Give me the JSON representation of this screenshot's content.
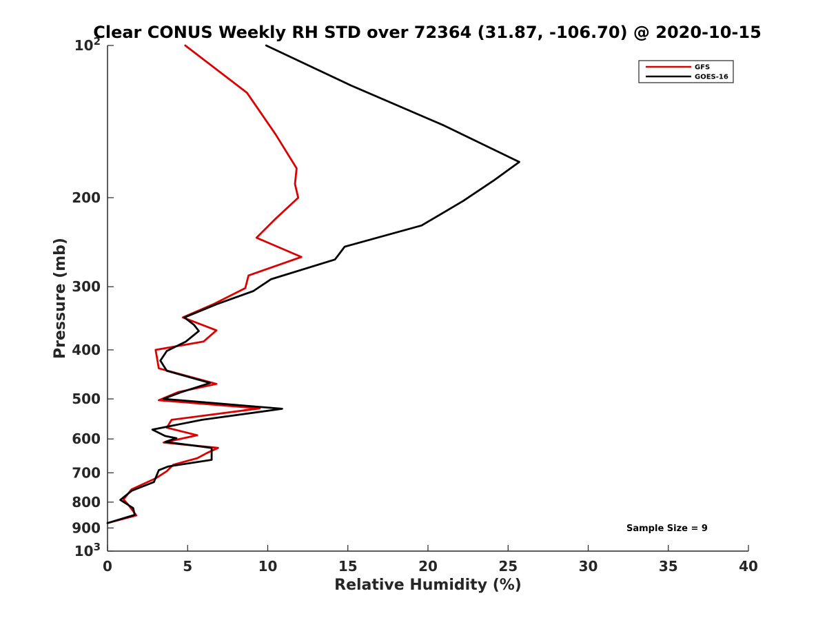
{
  "chart_data": {
    "type": "line",
    "title": "Clear CONUS Weekly RH STD over 72364 (31.87, -106.70) @ 2020-10-15",
    "xlabel": "Relative Humidity (%)",
    "ylabel": "Pressure (mb)",
    "xlim": [
      0,
      40
    ],
    "ylim": [
      100,
      1000
    ],
    "y_scale": "log",
    "y_reversed": true,
    "x_ticks": [
      "0",
      "5",
      "10",
      "15",
      "20",
      "25",
      "30",
      "35",
      "40"
    ],
    "y_ticks": [
      {
        "value": 100,
        "label": "10",
        "sup": "2"
      },
      {
        "value": 200,
        "label": "200",
        "sup": ""
      },
      {
        "value": 300,
        "label": "300",
        "sup": ""
      },
      {
        "value": 400,
        "label": "400",
        "sup": ""
      },
      {
        "value": 500,
        "label": "500",
        "sup": ""
      },
      {
        "value": 600,
        "label": "600",
        "sup": ""
      },
      {
        "value": 700,
        "label": "700",
        "sup": ""
      },
      {
        "value": 800,
        "label": "800",
        "sup": ""
      },
      {
        "value": 900,
        "label": "900",
        "sup": ""
      },
      {
        "value": 1000,
        "label": "10",
        "sup": "3"
      }
    ],
    "grid": false,
    "legend_position": "top-right",
    "annotation": "Sample Size = 9",
    "series": [
      {
        "name": "GFS",
        "color": "#dd0000",
        "points": [
          [
            4.85,
            100
          ],
          [
            8.7,
            124
          ],
          [
            10.5,
            150
          ],
          [
            11.8,
            175
          ],
          [
            11.7,
            188
          ],
          [
            11.9,
            200
          ],
          [
            10.5,
            220
          ],
          [
            9.3,
            240
          ],
          [
            12.1,
            262
          ],
          [
            8.8,
            285
          ],
          [
            8.6,
            302
          ],
          [
            6.6,
            325
          ],
          [
            4.7,
            345
          ],
          [
            6.8,
            366
          ],
          [
            6.0,
            385
          ],
          [
            3.0,
            400
          ],
          [
            3.2,
            435
          ],
          [
            6.8,
            467
          ],
          [
            4.4,
            485
          ],
          [
            3.2,
            503
          ],
          [
            9.5,
            522
          ],
          [
            4.0,
            550
          ],
          [
            3.7,
            570
          ],
          [
            5.6,
            590
          ],
          [
            3.5,
            610
          ],
          [
            6.9,
            625
          ],
          [
            6.2,
            640
          ],
          [
            5.6,
            655
          ],
          [
            4.1,
            675
          ],
          [
            3.7,
            695
          ],
          [
            3.0,
            718
          ],
          [
            1.5,
            755
          ],
          [
            1.0,
            790
          ],
          [
            1.3,
            810
          ],
          [
            1.8,
            850
          ],
          [
            0.0,
            880
          ]
        ]
      },
      {
        "name": "GOES-16",
        "color": "#000000",
        "points": [
          [
            9.9,
            100
          ],
          [
            15.2,
            120
          ],
          [
            21.0,
            144
          ],
          [
            25.7,
            170
          ],
          [
            24.1,
            185
          ],
          [
            22.2,
            203
          ],
          [
            19.6,
            227
          ],
          [
            14.8,
            250
          ],
          [
            14.2,
            265
          ],
          [
            10.2,
            290
          ],
          [
            9.1,
            306
          ],
          [
            6.8,
            325
          ],
          [
            4.8,
            345
          ],
          [
            5.4,
            357
          ],
          [
            5.7,
            367
          ],
          [
            4.9,
            385
          ],
          [
            3.7,
            402
          ],
          [
            3.3,
            420
          ],
          [
            3.7,
            440
          ],
          [
            6.4,
            465
          ],
          [
            4.6,
            485
          ],
          [
            3.5,
            500
          ],
          [
            10.9,
            523
          ],
          [
            5.9,
            550
          ],
          [
            2.8,
            575
          ],
          [
            3.6,
            592
          ],
          [
            4.3,
            598
          ],
          [
            3.6,
            608
          ],
          [
            6.5,
            625
          ],
          [
            6.5,
            645
          ],
          [
            6.5,
            660
          ],
          [
            3.8,
            680
          ],
          [
            3.2,
            692
          ],
          [
            2.9,
            730
          ],
          [
            1.5,
            760
          ],
          [
            0.8,
            792
          ],
          [
            1.6,
            822
          ],
          [
            1.7,
            848
          ],
          [
            0.0,
            880
          ]
        ]
      }
    ]
  }
}
